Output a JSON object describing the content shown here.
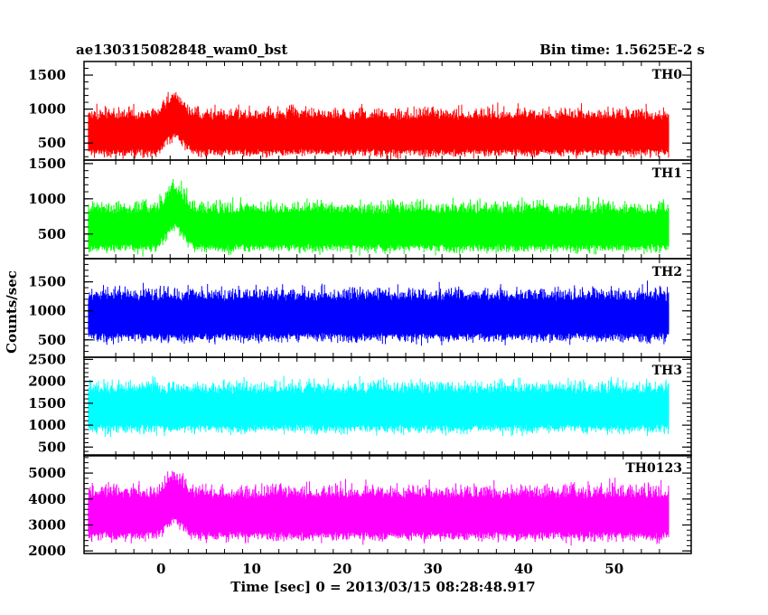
{
  "chart_data": {
    "type": "line",
    "title": "ae130315082848_wam0_bst",
    "subtitle": "Bin time: 1.5625E-2 s",
    "xlabel": "Time [sec] 0 = 2013/03/15 08:28:48.917",
    "ylabel": "Counts/sec",
    "xlim": [
      -8.5,
      58.5
    ],
    "x_data_range": [
      -8,
      56
    ],
    "xticks": [
      "0",
      "10",
      "20",
      "30",
      "40",
      "50"
    ],
    "xtick_values": [
      0,
      10,
      20,
      30,
      40,
      50
    ],
    "grid": false,
    "panels": [
      {
        "name": "TH0",
        "color": "#ff0000",
        "ylim": [
          250,
          1700
        ],
        "yticks": [
          "500",
          "1000",
          "1500"
        ],
        "ytick_values": [
          500,
          1000,
          1500
        ],
        "baseline": 620,
        "noise": 200,
        "bursts": [
          {
            "t": 1.5,
            "amp": 250
          }
        ]
      },
      {
        "name": "TH1",
        "color": "#00ff00",
        "ylim": [
          150,
          1550
        ],
        "yticks": [
          "500",
          "1000",
          "1500"
        ],
        "ytick_values": [
          500,
          1000,
          1500
        ],
        "baseline": 560,
        "noise": 200,
        "bursts": [
          {
            "t": 1.5,
            "amp": 300
          }
        ]
      },
      {
        "name": "TH2",
        "color": "#0000ff",
        "ylim": [
          200,
          1900
        ],
        "yticks": [
          "500",
          "1000",
          "1500"
        ],
        "ytick_values": [
          500,
          1000,
          1500
        ],
        "baseline": 880,
        "noise": 260,
        "bursts": []
      },
      {
        "name": "TH3",
        "color": "#00ffff",
        "ylim": [
          300,
          2550
        ],
        "yticks": [
          "500",
          "1000",
          "1500",
          "2000",
          "2500"
        ],
        "ytick_values": [
          500,
          1000,
          1500,
          2000,
          2500
        ],
        "baseline": 1350,
        "noise": 330,
        "bursts": []
      },
      {
        "name": "TH0123",
        "color": "#ff00ff",
        "ylim": [
          1900,
          5700
        ],
        "yticks": [
          "2000",
          "3000",
          "4000",
          "5000"
        ],
        "ytick_values": [
          2000,
          3000,
          4000,
          5000
        ],
        "baseline": 3350,
        "noise": 600,
        "bursts": [
          {
            "t": 1.5,
            "amp": 600
          }
        ]
      }
    ]
  }
}
